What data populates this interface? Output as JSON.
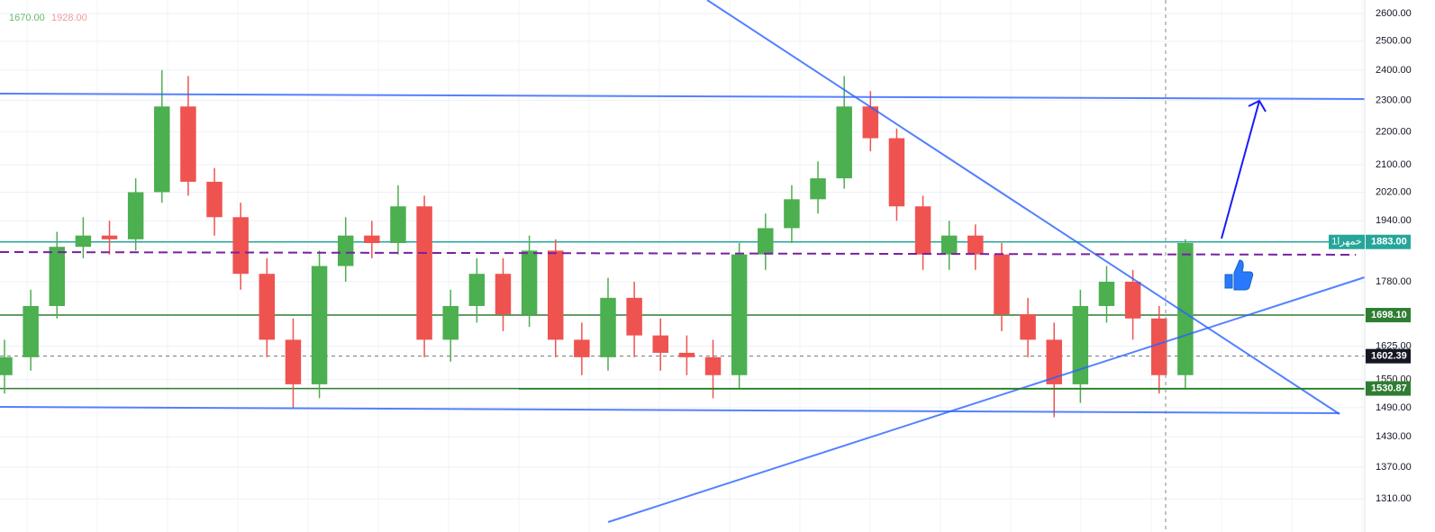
{
  "chart_data": {
    "type": "candlestick",
    "symbol": "خمهرا1",
    "header_values": [
      {
        "label": "1670.00",
        "color": "#66bb6a"
      },
      {
        "label": "1928.00",
        "color": "#ef9a9a"
      }
    ],
    "log_scale": true,
    "grid": true,
    "up_color": "#4caf50",
    "down_color": "#ef5350",
    "ylim": [
      1250,
      2650
    ],
    "yticks": [
      {
        "value": 2600,
        "label": "2600.00"
      },
      {
        "value": 2500,
        "label": "2500.00"
      },
      {
        "value": 2400,
        "label": "2400.00"
      },
      {
        "value": 2300,
        "label": "2300.00"
      },
      {
        "value": 2200,
        "label": "2200.00"
      },
      {
        "value": 2100,
        "label": "2100.00"
      },
      {
        "value": 2020,
        "label": "2020.00"
      },
      {
        "value": 1940,
        "label": "1940.00"
      },
      {
        "value": 1780,
        "label": "1780.00"
      },
      {
        "value": 1625,
        "label": "1625.00"
      },
      {
        "value": 1550,
        "label": "1550.00"
      },
      {
        "value": 1490,
        "label": "1490.00"
      },
      {
        "value": 1430,
        "label": "1430.00"
      },
      {
        "value": 1370,
        "label": "1370.00"
      },
      {
        "value": 1310,
        "label": "1310.00"
      }
    ],
    "price_lines": [
      {
        "value": 1883,
        "label": "1883.00",
        "color": "#26a69a",
        "dashed": false
      },
      {
        "value": 1698.1,
        "label": "1698.10",
        "color": "#2e7d32",
        "dashed": false
      },
      {
        "value": 1602.39,
        "label": "1602.39",
        "color": "#131722",
        "dashed": true
      },
      {
        "value": 1530.87,
        "label": "1530.87",
        "color": "#2e7d32",
        "dashed": false
      }
    ],
    "open": [
      1560,
      1600,
      1720,
      1870,
      1900,
      1890,
      2020,
      2280,
      2050,
      1950,
      1800,
      1640,
      1540,
      1820,
      1900,
      1880,
      1980,
      1640,
      1720,
      1800,
      1700,
      1860,
      1640,
      1600,
      1740,
      1650,
      1610,
      1600,
      1560,
      1850,
      1920,
      2000,
      2060,
      2280,
      2180,
      1980,
      1850,
      1900,
      1850,
      1700,
      1640,
      1540,
      1720,
      1780,
      1690,
      1560
    ],
    "high": [
      1640,
      1760,
      1910,
      1950,
      1940,
      2060,
      2400,
      2380,
      2090,
      1990,
      1840,
      1690,
      1860,
      1950,
      1940,
      2040,
      2010,
      1760,
      1840,
      1840,
      1900,
      1890,
      1680,
      1790,
      1780,
      1690,
      1650,
      1640,
      1880,
      1960,
      2040,
      2110,
      2380,
      2330,
      2210,
      2010,
      1940,
      1930,
      1880,
      1740,
      1680,
      1760,
      1820,
      1810,
      1720,
      1890
    ],
    "low": [
      1520,
      1570,
      1690,
      1840,
      1850,
      1860,
      1990,
      2010,
      1900,
      1760,
      1600,
      1490,
      1510,
      1780,
      1840,
      1850,
      1600,
      1590,
      1680,
      1660,
      1670,
      1600,
      1560,
      1570,
      1600,
      1570,
      1560,
      1510,
      1530,
      1810,
      1880,
      1960,
      2030,
      2140,
      1940,
      1810,
      1810,
      1810,
      1660,
      1600,
      1470,
      1500,
      1680,
      1640,
      1520,
      1530
    ],
    "close": [
      1600,
      1720,
      1870,
      1900,
      1890,
      2020,
      2280,
      2050,
      1950,
      1800,
      1640,
      1540,
      1820,
      1900,
      1880,
      1980,
      1640,
      1720,
      1800,
      1700,
      1860,
      1640,
      1600,
      1740,
      1650,
      1610,
      1600,
      1560,
      1850,
      1920,
      2000,
      2060,
      2280,
      2180,
      1980,
      1850,
      1900,
      1850,
      1700,
      1640,
      1540,
      1720,
      1780,
      1690,
      1560,
      1880
    ]
  }
}
